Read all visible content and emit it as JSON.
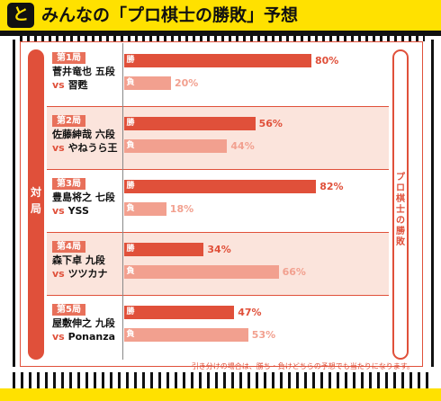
{
  "header": {
    "badge": "と",
    "title": "みんなの「プロ棋士の勝敗」予想"
  },
  "side_label_left": [
    "対",
    "局"
  ],
  "side_label_right": [
    "プ",
    "ロ",
    "棋",
    "士",
    "の",
    "勝",
    "敗"
  ],
  "bar_tags": {
    "win": "勝",
    "lose": "負"
  },
  "vs_label": "vs",
  "colors": {
    "win": "#e0503a",
    "lose": "#f2a08f",
    "accent": "#e0503a",
    "row_shade": "#fbe4dc"
  },
  "chart_data": {
    "type": "bar",
    "title": "みんなの「プロ棋士の勝敗」予想",
    "xlabel": "",
    "ylabel": "",
    "xlim": [
      0,
      100
    ],
    "unit": "%",
    "rounds": [
      {
        "round": "第1局",
        "player": "菅井竜也 五段",
        "opponent": "習甦",
        "win": 80,
        "lose": 20
      },
      {
        "round": "第2局",
        "player": "佐藤紳哉 六段",
        "opponent": "やねうら王",
        "win": 56,
        "lose": 44
      },
      {
        "round": "第3局",
        "player": "豊島将之 七段",
        "opponent": "YSS",
        "win": 82,
        "lose": 18
      },
      {
        "round": "第4局",
        "player": "森下卓 九段",
        "opponent": "ツツカナ",
        "win": 34,
        "lose": 66
      },
      {
        "round": "第5局",
        "player": "屋敷伸之 九段",
        "opponent": "Ponanza",
        "win": 47,
        "lose": 53
      }
    ],
    "series": [
      {
        "name": "勝",
        "values": [
          80,
          56,
          82,
          34,
          47
        ]
      },
      {
        "name": "負",
        "values": [
          20,
          44,
          18,
          66,
          53
        ]
      }
    ]
  },
  "footer_note": "引き分けの場合は、勝ち・負けどちらの予想でも当たりになります。"
}
